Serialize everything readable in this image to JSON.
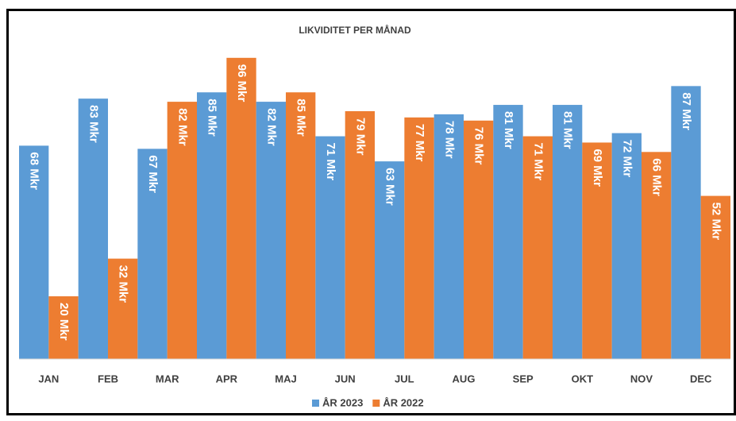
{
  "chart_data": {
    "type": "bar",
    "title": "LIKVIDITET PER MÅNAD",
    "categories": [
      "JAN",
      "FEB",
      "MAR",
      "APR",
      "MAJ",
      "JUN",
      "JUL",
      "AUG",
      "SEP",
      "OKT",
      "NOV",
      "DEC"
    ],
    "series": [
      {
        "name": "ÅR 2023",
        "color": "#5b9bd5",
        "values": [
          68,
          83,
          67,
          85,
          82,
          71,
          63,
          78,
          81,
          81,
          72,
          87
        ],
        "value_labels": [
          "68 Mkr",
          "83 Mkr",
          "67 Mkr",
          "85 Mkr",
          "82 Mkr",
          "71 Mkr",
          "63 Mkr",
          "78 Mkr",
          "81 Mkr",
          "81 Mkr",
          "72 Mkr",
          "87 Mkr"
        ]
      },
      {
        "name": "ÅR 2022",
        "color": "#ed7d31",
        "values": [
          20,
          32,
          82,
          96,
          85,
          79,
          77,
          76,
          71,
          69,
          66,
          52
        ],
        "value_labels": [
          "20 Mkr",
          "32 Mkr",
          "82 Mkr",
          "96 Mkr",
          "85 Mkr",
          "79 Mkr",
          "77 Mkr",
          "76 Mkr",
          "71 Mkr",
          "69 Mkr",
          "66 Mkr",
          "52 Mkr"
        ]
      }
    ],
    "ylim": [
      0,
      100
    ],
    "legend": "bottom"
  }
}
